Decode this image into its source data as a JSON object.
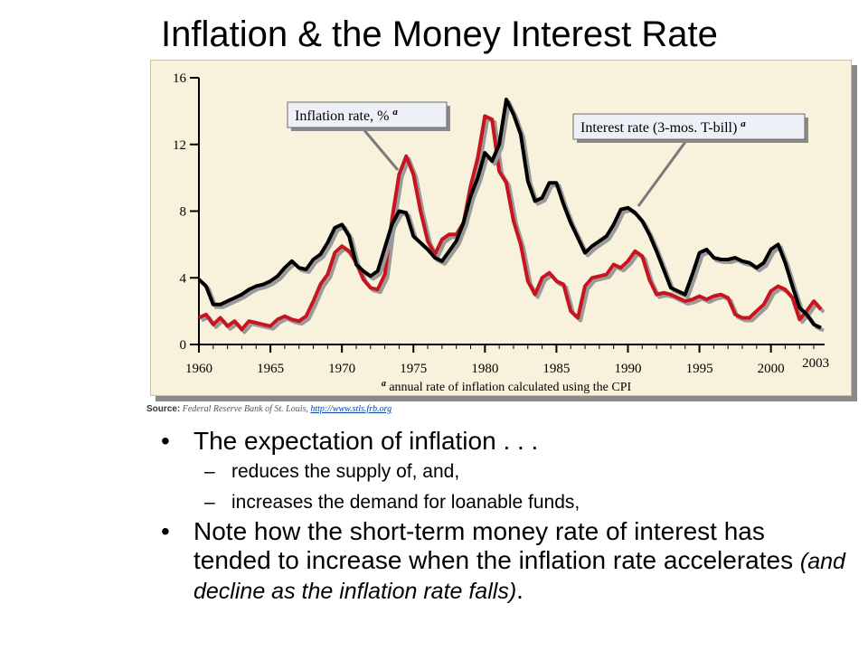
{
  "slide": {
    "title": "Inflation & the Money Interest Rate",
    "source_label": "Source:",
    "source_text": "Federal Reserve Bank of St. Louis,",
    "source_link": "http://www.stls.frb.org"
  },
  "bullets": {
    "b1": "The expectation of inflation . . .",
    "sub1": "reduces the supply of, and,",
    "sub2": "increases the demand for loanable funds,",
    "b2_main": "Note how the short-term money rate of interest has tended to increase when the inflation rate accelerates ",
    "b2_italic": "(and decline as the inflation rate falls)",
    "b2_end": "."
  },
  "chart_data": {
    "type": "line",
    "xlim": [
      1960,
      2003.5
    ],
    "ylim": [
      0,
      16
    ],
    "yticks": [
      "0",
      "4",
      "8",
      "12",
      "16"
    ],
    "xticks": [
      "1960",
      "1965",
      "1970",
      "1975",
      "1980",
      "1985",
      "1990",
      "1995",
      "2000",
      "2003"
    ],
    "footnote_marker": "a",
    "footnote": "annual rate of inflation calculated using the CPI",
    "colors": {
      "inflation": "#c8141e",
      "interest": "#000000",
      "callout_bg": "#eef0f8"
    },
    "series": [
      {
        "name": "Inflation rate, %",
        "marker": "a",
        "points": [
          [
            1960,
            1.6
          ],
          [
            1960.5,
            1.8
          ],
          [
            1961,
            1.2
          ],
          [
            1961.5,
            1.6
          ],
          [
            1962,
            1.1
          ],
          [
            1962.5,
            1.4
          ],
          [
            1963,
            0.9
          ],
          [
            1963.5,
            1.4
          ],
          [
            1964,
            1.3
          ],
          [
            1964.5,
            1.2
          ],
          [
            1965,
            1.1
          ],
          [
            1965.5,
            1.5
          ],
          [
            1966,
            1.7
          ],
          [
            1966.5,
            1.5
          ],
          [
            1967,
            1.4
          ],
          [
            1967.5,
            1.7
          ],
          [
            1968,
            2.6
          ],
          [
            1968.5,
            3.6
          ],
          [
            1969,
            4.2
          ],
          [
            1969.5,
            5.5
          ],
          [
            1970,
            5.9
          ],
          [
            1970.5,
            5.6
          ],
          [
            1971,
            4.9
          ],
          [
            1971.5,
            3.9
          ],
          [
            1972,
            3.4
          ],
          [
            1972.5,
            3.3
          ],
          [
            1973,
            4.2
          ],
          [
            1973.5,
            7.5
          ],
          [
            1974,
            10.2
          ],
          [
            1974.5,
            11.3
          ],
          [
            1975,
            10.2
          ],
          [
            1975.5,
            8.0
          ],
          [
            1976,
            6.2
          ],
          [
            1976.5,
            5.4
          ],
          [
            1977,
            6.3
          ],
          [
            1977.5,
            6.6
          ],
          [
            1978,
            6.6
          ],
          [
            1978.5,
            7.3
          ],
          [
            1979,
            9.5
          ],
          [
            1979.5,
            11.2
          ],
          [
            1980,
            13.7
          ],
          [
            1980.5,
            13.5
          ],
          [
            1981,
            10.4
          ],
          [
            1981.5,
            9.7
          ],
          [
            1982,
            7.4
          ],
          [
            1982.5,
            6.0
          ],
          [
            1983,
            3.8
          ],
          [
            1983.5,
            3.0
          ],
          [
            1984,
            4.0
          ],
          [
            1984.5,
            4.3
          ],
          [
            1985,
            3.8
          ],
          [
            1985.5,
            3.6
          ],
          [
            1986,
            2.0
          ],
          [
            1986.5,
            1.6
          ],
          [
            1987,
            3.5
          ],
          [
            1987.5,
            4.0
          ],
          [
            1988,
            4.1
          ],
          [
            1988.5,
            4.2
          ],
          [
            1989,
            4.8
          ],
          [
            1989.5,
            4.6
          ],
          [
            1990,
            5.0
          ],
          [
            1990.5,
            5.6
          ],
          [
            1991,
            5.3
          ],
          [
            1991.5,
            3.9
          ],
          [
            1992,
            3.0
          ],
          [
            1992.5,
            3.1
          ],
          [
            1993,
            3.0
          ],
          [
            1993.5,
            2.8
          ],
          [
            1994,
            2.6
          ],
          [
            1994.5,
            2.7
          ],
          [
            1995,
            2.9
          ],
          [
            1995.5,
            2.7
          ],
          [
            1996,
            2.9
          ],
          [
            1996.5,
            3.0
          ],
          [
            1997,
            2.8
          ],
          [
            1997.5,
            1.8
          ],
          [
            1998,
            1.6
          ],
          [
            1998.5,
            1.6
          ],
          [
            1999,
            2.0
          ],
          [
            1999.5,
            2.4
          ],
          [
            2000,
            3.2
          ],
          [
            2000.5,
            3.5
          ],
          [
            2001,
            3.3
          ],
          [
            2001.5,
            2.8
          ],
          [
            2002,
            1.5
          ],
          [
            2002.5,
            2.0
          ],
          [
            2003,
            2.6
          ],
          [
            2003.5,
            2.1
          ]
        ]
      },
      {
        "name": "Interest rate (3-mos. T-bill)",
        "marker": "a",
        "points": [
          [
            1960,
            3.9
          ],
          [
            1960.5,
            3.5
          ],
          [
            1961,
            2.4
          ],
          [
            1961.5,
            2.4
          ],
          [
            1962,
            2.6
          ],
          [
            1962.5,
            2.8
          ],
          [
            1963,
            3.0
          ],
          [
            1963.5,
            3.3
          ],
          [
            1964,
            3.5
          ],
          [
            1964.5,
            3.6
          ],
          [
            1965,
            3.8
          ],
          [
            1965.5,
            4.1
          ],
          [
            1966,
            4.6
          ],
          [
            1966.5,
            5.0
          ],
          [
            1967,
            4.6
          ],
          [
            1967.5,
            4.5
          ],
          [
            1968,
            5.1
          ],
          [
            1968.5,
            5.4
          ],
          [
            1969,
            6.1
          ],
          [
            1969.5,
            7.0
          ],
          [
            1970,
            7.2
          ],
          [
            1970.5,
            6.5
          ],
          [
            1971,
            4.8
          ],
          [
            1971.5,
            4.4
          ],
          [
            1972,
            4.1
          ],
          [
            1972.5,
            4.4
          ],
          [
            1973,
            5.8
          ],
          [
            1973.5,
            7.2
          ],
          [
            1974,
            8.0
          ],
          [
            1974.5,
            7.9
          ],
          [
            1975,
            6.5
          ],
          [
            1975.5,
            6.1
          ],
          [
            1976,
            5.7
          ],
          [
            1976.5,
            5.2
          ],
          [
            1977,
            5.0
          ],
          [
            1977.5,
            5.6
          ],
          [
            1978,
            6.2
          ],
          [
            1978.5,
            7.3
          ],
          [
            1979,
            8.9
          ],
          [
            1979.5,
            10.0
          ],
          [
            1980,
            11.5
          ],
          [
            1980.5,
            11.0
          ],
          [
            1981,
            12.0
          ],
          [
            1981.5,
            14.7
          ],
          [
            1982,
            13.8
          ],
          [
            1982.5,
            12.6
          ],
          [
            1983,
            9.8
          ],
          [
            1983.5,
            8.6
          ],
          [
            1984,
            8.8
          ],
          [
            1984.5,
            9.7
          ],
          [
            1985,
            9.7
          ],
          [
            1985.5,
            8.4
          ],
          [
            1986,
            7.3
          ],
          [
            1986.5,
            6.4
          ],
          [
            1987,
            5.5
          ],
          [
            1987.5,
            5.9
          ],
          [
            1988,
            6.2
          ],
          [
            1988.5,
            6.5
          ],
          [
            1989,
            7.2
          ],
          [
            1989.5,
            8.1
          ],
          [
            1990,
            8.2
          ],
          [
            1990.5,
            7.9
          ],
          [
            1991,
            7.4
          ],
          [
            1991.5,
            6.6
          ],
          [
            1992,
            5.6
          ],
          [
            1992.5,
            4.5
          ],
          [
            1993,
            3.4
          ],
          [
            1993.5,
            3.2
          ],
          [
            1994,
            3.0
          ],
          [
            1994.5,
            4.2
          ],
          [
            1995,
            5.5
          ],
          [
            1995.5,
            5.7
          ],
          [
            1996,
            5.2
          ],
          [
            1996.5,
            5.1
          ],
          [
            1997,
            5.1
          ],
          [
            1997.5,
            5.2
          ],
          [
            1998,
            5.0
          ],
          [
            1998.5,
            4.9
          ],
          [
            1999,
            4.6
          ],
          [
            1999.5,
            4.9
          ],
          [
            2000,
            5.7
          ],
          [
            2000.5,
            6.0
          ],
          [
            2001,
            4.9
          ],
          [
            2001.5,
            3.5
          ],
          [
            2002,
            2.2
          ],
          [
            2002.5,
            1.8
          ],
          [
            2003,
            1.2
          ],
          [
            2003.5,
            1.0
          ]
        ]
      }
    ]
  }
}
